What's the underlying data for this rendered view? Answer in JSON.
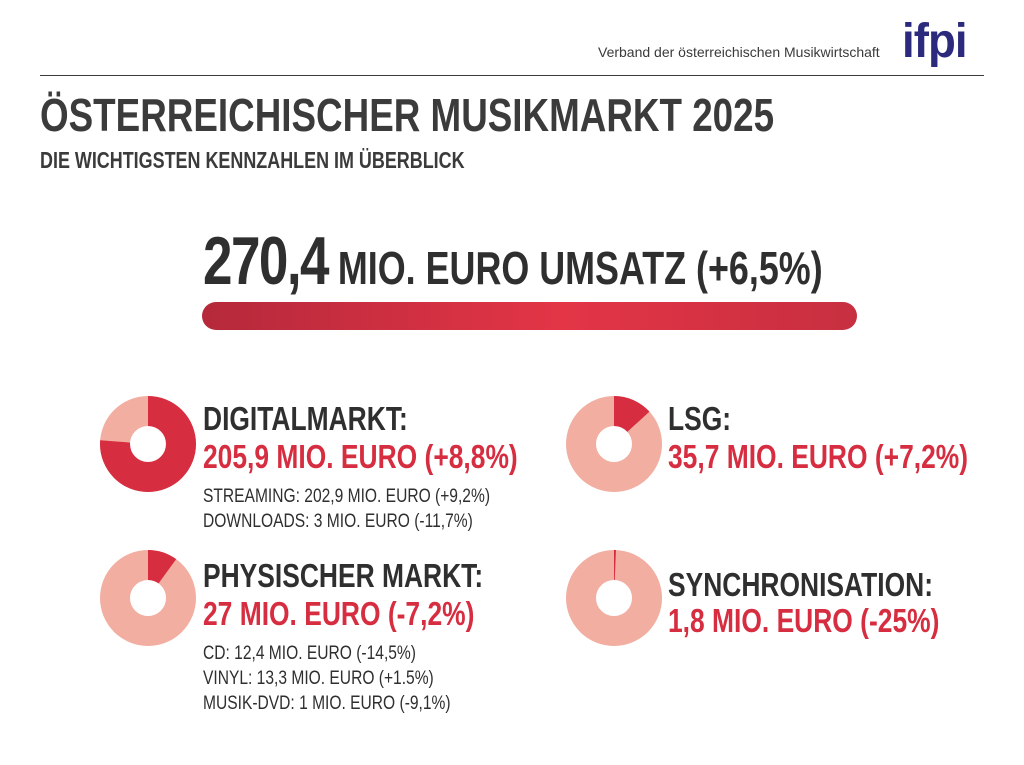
{
  "header": {
    "brand_subtitle": "Verband der österreichischen Musikwirtschaft",
    "brand_logo": "ifpi"
  },
  "title": "ÖSTERREICHISCHER MUSIKMARKT 2025",
  "subtitle": "DIE WICHTIGSTEN KENNZAHLEN IM ÜBERBLICK",
  "total": {
    "value": "270,4",
    "text": " MIO. EURO UMSATZ (+6,5%)"
  },
  "segments": {
    "digital": {
      "title": "DIGITALMARKT:",
      "value": "205,9 MIO. EURO (+8,8%)",
      "details": [
        "STREAMING: 202,9 MIO. EURO (+9,2%)",
        "DOWNLOADS: 3 MIO. EURO (-11,7%)"
      ]
    },
    "lsg": {
      "title": "LSG:",
      "value": "35,7 MIO. EURO (+7,2%)"
    },
    "physical": {
      "title": "PHYSISCHER MARKT:",
      "value": "27 MIO. EURO (-7,2%)",
      "details": [
        "CD: 12,4 MIO. EURO (-14,5%)",
        "VINYL: 13,3 MIO. EURO (+1.5%)",
        "MUSIK-DVD: 1 MIO. EURO (-9,1%)"
      ]
    },
    "sync": {
      "title": "SYNCHRONISATION:",
      "value": "1,8 MIO. EURO (-25%)"
    }
  },
  "chart_data": {
    "type": "pie",
    "total": 270.4,
    "unit": "MIO. EURO",
    "slices": [
      {
        "key": "digital",
        "value": 205.9
      },
      {
        "key": "lsg",
        "value": 35.7
      },
      {
        "key": "physical",
        "value": 27
      },
      {
        "key": "sync",
        "value": 1.8
      }
    ]
  },
  "colors": {
    "highlight": "#d62e40",
    "highlight_dark": "#b5293b",
    "remainder": "#f1aea1",
    "brand": "#2b2a7c",
    "text": "#2f2f2f"
  }
}
